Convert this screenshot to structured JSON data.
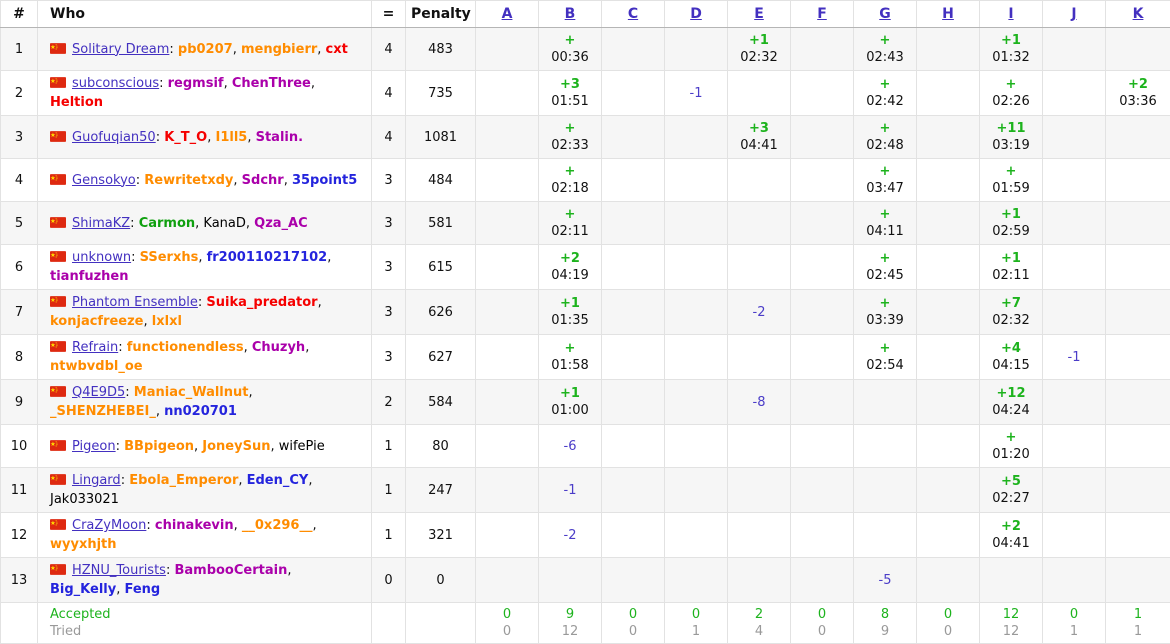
{
  "colors": {
    "accepted_green": "#1db31d",
    "rejected_indigo": "#4b3dc8",
    "link_indigo": "#4330c0",
    "tried_gray": "#999999",
    "flag_red": "#de2910",
    "flag_yellow": "#ffde00",
    "handle_colors": {
      "orange": "#ff8c00",
      "red": "#f50000",
      "violet": "#aa00aa",
      "blue": "#2424dd",
      "green": "#0fa00f",
      "black": "#000000"
    }
  },
  "header": {
    "rank": "#",
    "who": "Who",
    "solved": "=",
    "penalty": "Penalty",
    "problems": [
      "A",
      "B",
      "C",
      "D",
      "E",
      "F",
      "G",
      "H",
      "I",
      "J",
      "K"
    ]
  },
  "rows": [
    {
      "rank": "1",
      "flag": "china",
      "team": "Solitary Dream",
      "solved": "4",
      "penalty": "483",
      "members": [
        {
          "n": "pb0207",
          "c": "orange"
        },
        {
          "n": "mengbierr",
          "c": "orange"
        },
        {
          "n": "cxt",
          "c": "red"
        }
      ],
      "cells": {
        "B": {
          "ok": "+",
          "time": "00:36"
        },
        "E": {
          "ok": "+1",
          "time": "02:32"
        },
        "G": {
          "ok": "+",
          "time": "02:43"
        },
        "I": {
          "ok": "+1",
          "time": "01:32"
        }
      }
    },
    {
      "rank": "2",
      "flag": "china",
      "team": "subconscious",
      "solved": "4",
      "penalty": "735",
      "members": [
        {
          "n": "regmsif",
          "c": "violet"
        },
        {
          "n": "ChenThree",
          "c": "violet"
        },
        {
          "n": "Heltion",
          "c": "red"
        }
      ],
      "cells": {
        "B": {
          "ok": "+3",
          "time": "01:51"
        },
        "D": {
          "rej": "-1"
        },
        "G": {
          "ok": "+",
          "time": "02:42"
        },
        "I": {
          "ok": "+",
          "time": "02:26"
        },
        "K": {
          "ok": "+2",
          "time": "03:36"
        }
      }
    },
    {
      "rank": "3",
      "flag": "china",
      "team": "Guofuqian50",
      "solved": "4",
      "penalty": "1081",
      "members": [
        {
          "n": "K_T_O",
          "c": "red"
        },
        {
          "n": "I1ll5",
          "c": "orange"
        },
        {
          "n": "Stalin.",
          "c": "violet"
        }
      ],
      "cells": {
        "B": {
          "ok": "+",
          "time": "02:33"
        },
        "E": {
          "ok": "+3",
          "time": "04:41"
        },
        "G": {
          "ok": "+",
          "time": "02:48"
        },
        "I": {
          "ok": "+11",
          "time": "03:19"
        }
      }
    },
    {
      "rank": "4",
      "flag": "china",
      "team": "Gensokyo",
      "solved": "3",
      "penalty": "484",
      "members": [
        {
          "n": "Rewritetxdy",
          "c": "orange"
        },
        {
          "n": "Sdchr",
          "c": "violet"
        },
        {
          "n": "35point5",
          "c": "blue"
        }
      ],
      "cells": {
        "B": {
          "ok": "+",
          "time": "02:18"
        },
        "G": {
          "ok": "+",
          "time": "03:47"
        },
        "I": {
          "ok": "+",
          "time": "01:59"
        }
      }
    },
    {
      "rank": "5",
      "flag": "china",
      "team": "ShimaKZ",
      "solved": "3",
      "penalty": "581",
      "members": [
        {
          "n": "Carmon",
          "c": "green"
        },
        {
          "n": "KanaD",
          "c": "black"
        },
        {
          "n": "Qza_AC",
          "c": "violet"
        }
      ],
      "cells": {
        "B": {
          "ok": "+",
          "time": "02:11"
        },
        "G": {
          "ok": "+",
          "time": "04:11"
        },
        "I": {
          "ok": "+1",
          "time": "02:59"
        }
      }
    },
    {
      "rank": "6",
      "flag": "china",
      "team": "unknown",
      "solved": "3",
      "penalty": "615",
      "members": [
        {
          "n": "SSerxhs",
          "c": "orange"
        },
        {
          "n": "fr200110217102",
          "c": "blue"
        },
        {
          "n": "tianfuzhen",
          "c": "violet"
        }
      ],
      "cells": {
        "B": {
          "ok": "+2",
          "time": "04:19"
        },
        "G": {
          "ok": "+",
          "time": "02:45"
        },
        "I": {
          "ok": "+1",
          "time": "02:11"
        }
      }
    },
    {
      "rank": "7",
      "flag": "china",
      "team": "Phantom Ensemble",
      "solved": "3",
      "penalty": "626",
      "members": [
        {
          "n": "Suika_predator",
          "c": "red"
        },
        {
          "n": "konjacfreeze",
          "c": "orange"
        },
        {
          "n": "lxlxl",
          "c": "orange"
        }
      ],
      "cells": {
        "B": {
          "ok": "+1",
          "time": "01:35"
        },
        "E": {
          "rej": "-2"
        },
        "G": {
          "ok": "+",
          "time": "03:39"
        },
        "I": {
          "ok": "+7",
          "time": "02:32"
        }
      }
    },
    {
      "rank": "8",
      "flag": "china",
      "team": "Refrain",
      "solved": "3",
      "penalty": "627",
      "members": [
        {
          "n": "functionendless",
          "c": "orange"
        },
        {
          "n": "Chuzyh",
          "c": "violet"
        },
        {
          "n": "ntwbvdbl_oe",
          "c": "orange"
        }
      ],
      "cells": {
        "B": {
          "ok": "+",
          "time": "01:58"
        },
        "G": {
          "ok": "+",
          "time": "02:54"
        },
        "I": {
          "ok": "+4",
          "time": "04:15"
        },
        "J": {
          "rej": "-1"
        }
      }
    },
    {
      "rank": "9",
      "flag": "china",
      "team": "Q4E9D5",
      "solved": "2",
      "penalty": "584",
      "members": [
        {
          "n": "Maniac_Wallnut",
          "c": "orange"
        },
        {
          "n": "_SHENZHEBEI_",
          "c": "orange"
        },
        {
          "n": "nn020701",
          "c": "blue"
        }
      ],
      "cells": {
        "B": {
          "ok": "+1",
          "time": "01:00"
        },
        "E": {
          "rej": "-8"
        },
        "I": {
          "ok": "+12",
          "time": "04:24"
        }
      }
    },
    {
      "rank": "10",
      "flag": "china",
      "team": "Pigeon",
      "solved": "1",
      "penalty": "80",
      "members": [
        {
          "n": "BBpigeon",
          "c": "orange"
        },
        {
          "n": "JoneySun",
          "c": "orange"
        },
        {
          "n": "wifePie",
          "c": "black"
        }
      ],
      "cells": {
        "B": {
          "rej": "-6"
        },
        "I": {
          "ok": "+",
          "time": "01:20"
        }
      }
    },
    {
      "rank": "11",
      "flag": "china",
      "team": "Lingard",
      "solved": "1",
      "penalty": "247",
      "members": [
        {
          "n": "Ebola_Emperor",
          "c": "orange"
        },
        {
          "n": "Eden_CY",
          "c": "blue"
        },
        {
          "n": "Jak033021",
          "c": "black"
        }
      ],
      "cells": {
        "B": {
          "rej": "-1"
        },
        "I": {
          "ok": "+5",
          "time": "02:27"
        }
      }
    },
    {
      "rank": "12",
      "flag": "china",
      "team": "CraZyMoon",
      "solved": "1",
      "penalty": "321",
      "members": [
        {
          "n": "chinakevin",
          "c": "violet"
        },
        {
          "n": "__0x296__",
          "c": "orange"
        },
        {
          "n": "wyyxhjth",
          "c": "orange"
        }
      ],
      "cells": {
        "B": {
          "rej": "-2"
        },
        "I": {
          "ok": "+2",
          "time": "04:41"
        }
      }
    },
    {
      "rank": "13",
      "flag": "china",
      "team": "HZNU_Tourists",
      "solved": "0",
      "penalty": "0",
      "members": [
        {
          "n": "BambooCertain",
          "c": "violet"
        },
        {
          "n": "Big_Kelly",
          "c": "blue"
        },
        {
          "n": "Feng",
          "c": "blue"
        }
      ],
      "cells": {
        "G": {
          "rej": "-5"
        }
      }
    }
  ],
  "footer": {
    "accepted_label": "Accepted",
    "tried_label": "Tried",
    "counts": [
      {
        "accepted": "0",
        "tried": "0"
      },
      {
        "accepted": "9",
        "tried": "12"
      },
      {
        "accepted": "0",
        "tried": "0"
      },
      {
        "accepted": "0",
        "tried": "1"
      },
      {
        "accepted": "2",
        "tried": "4"
      },
      {
        "accepted": "0",
        "tried": "0"
      },
      {
        "accepted": "8",
        "tried": "9"
      },
      {
        "accepted": "0",
        "tried": "0"
      },
      {
        "accepted": "12",
        "tried": "12"
      },
      {
        "accepted": "0",
        "tried": "1"
      },
      {
        "accepted": "1",
        "tried": "1"
      }
    ]
  }
}
